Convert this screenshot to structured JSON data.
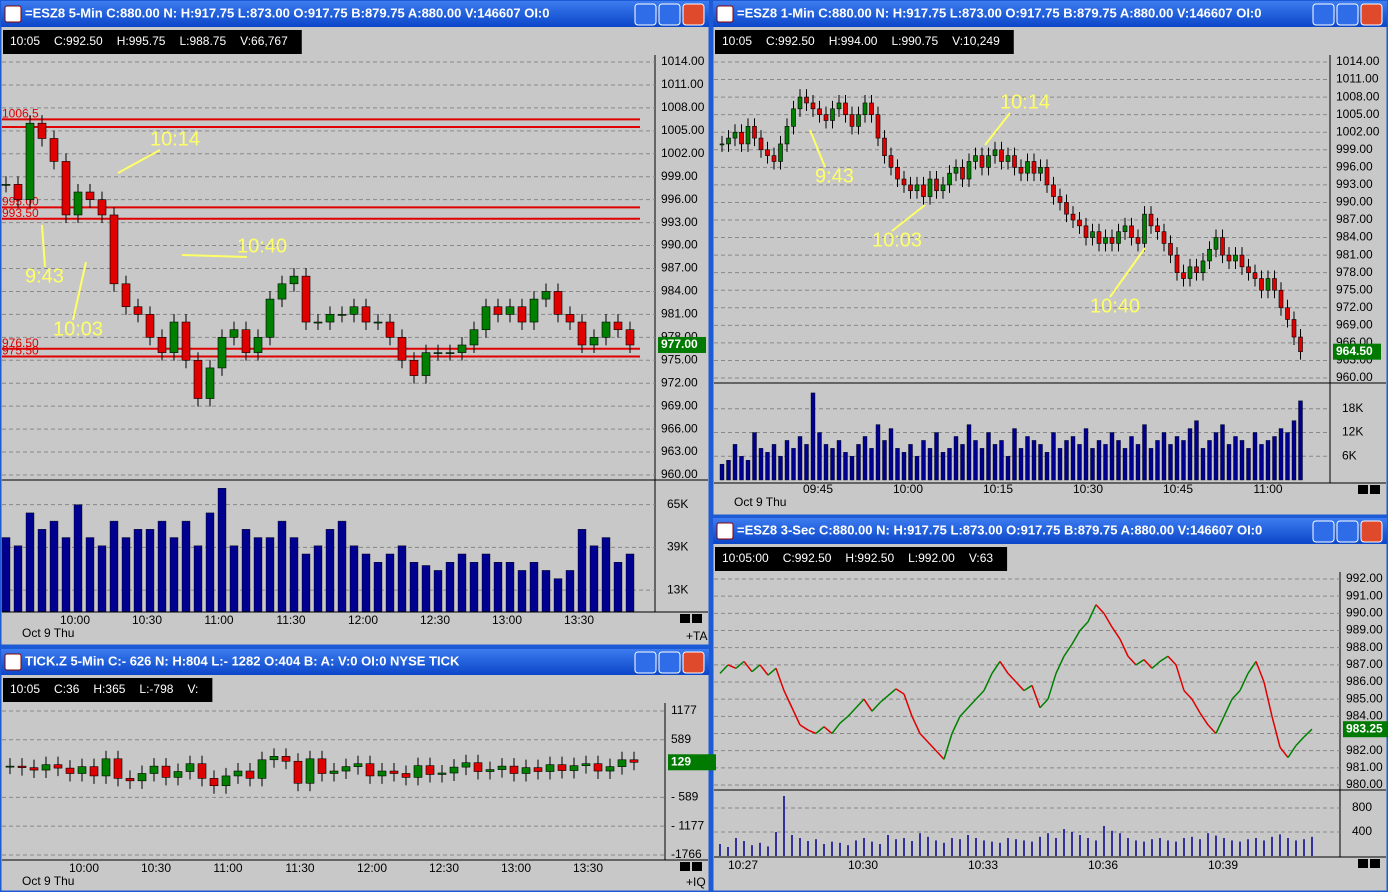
{
  "windows": [
    {
      "title": "=ESZ8 5-Min C:880.00 N: H:917.75 L:873.00 O:917.75 B:879.75 A:880.00 V:146607 OI:0",
      "info": [
        "10:05",
        "C:992.50",
        "H:995.75",
        "L:988.75",
        "V:66,767"
      ],
      "ylim": [
        960,
        1014
      ],
      "yticks": [
        {
          "value": 960,
          "label": "960.00"
        },
        {
          "value": 963,
          "label": "963.00"
        },
        {
          "value": 966,
          "label": "966.00"
        },
        {
          "value": 969,
          "label": "969.00"
        },
        {
          "value": 972,
          "label": "972.00"
        },
        {
          "value": 975,
          "label": "975.00"
        },
        {
          "value": 978,
          "label": "978.00"
        },
        {
          "value": 981,
          "label": "981.00"
        },
        {
          "value": 984,
          "label": "984.00"
        },
        {
          "value": 987,
          "label": "987.00"
        },
        {
          "value": 990,
          "label": "990.00"
        },
        {
          "value": 993,
          "label": "993.00"
        },
        {
          "value": 996,
          "label": "996.00"
        },
        {
          "value": 999,
          "label": "999.00"
        },
        {
          "value": 1002,
          "label": "1002.00"
        },
        {
          "value": 1005,
          "label": "1005.00"
        },
        {
          "value": 1008,
          "label": "1008.00"
        },
        {
          "value": 1011,
          "label": "1011.00"
        },
        {
          "value": 1014,
          "label": "1014.00"
        }
      ],
      "closes": [
        998,
        996,
        1006,
        1004,
        1001,
        994,
        997,
        996,
        994,
        985,
        982,
        981,
        978,
        976,
        980,
        975,
        970,
        974,
        978,
        979,
        976,
        978,
        983,
        985,
        986,
        980,
        980,
        981,
        981,
        982,
        980,
        980,
        978,
        975,
        973,
        976,
        976,
        976,
        977,
        979,
        982,
        981,
        982,
        980,
        983,
        984,
        981,
        980,
        977,
        978,
        980,
        979,
        977
      ],
      "last": {
        "value": 977,
        "label": "977.00"
      },
      "levels": [
        {
          "value": 1006.5,
          "label": "1006.5"
        },
        {
          "value": 1005.5
        },
        {
          "value": 995,
          "label": "995.00"
        },
        {
          "value": 993.5,
          "label": "993.50"
        },
        {
          "value": 976.5,
          "label": "976.50"
        },
        {
          "value": 975.5,
          "label": "975.50"
        }
      ],
      "vol_ylim": [
        0,
        80000
      ],
      "vol_ticks": [
        {
          "value": 13000,
          "label": "13K"
        },
        {
          "value": 39000,
          "label": "39K"
        },
        {
          "value": 65000,
          "label": "65K"
        }
      ],
      "volume": [
        45000,
        40000,
        60000,
        50000,
        55000,
        45000,
        65000,
        45000,
        40000,
        55000,
        45000,
        50000,
        50000,
        55000,
        45000,
        55000,
        40000,
        60000,
        75000,
        40000,
        50000,
        45000,
        45000,
        55000,
        45000,
        35000,
        40000,
        50000,
        55000,
        40000,
        35000,
        30000,
        35000,
        40000,
        30000,
        28000,
        25000,
        30000,
        35000,
        30000,
        35000,
        30000,
        30000,
        25000,
        30000,
        25000,
        20000,
        25000,
        50000,
        40000,
        45000,
        30000,
        35000
      ],
      "times": [
        "10:00",
        "10:30",
        "11:00",
        "11:30",
        "12:00",
        "12:30",
        "13:00",
        "13:30"
      ],
      "date": "Oct 9 Thu",
      "corner": "+TA",
      "annotations": [
        "10:14",
        "10:40",
        "9:43",
        "10:03"
      ]
    },
    {
      "title": "=ESZ8 1-Min C:880.00 N: H:917.75 L:873.00 O:917.75 B:879.75 A:880.00 V:146607 OI:0",
      "info": [
        "10:05",
        "C:992.50",
        "H:994.00",
        "L:990.75",
        "V:10,249"
      ],
      "ylim": [
        960,
        1014
      ],
      "yticks": [
        {
          "value": 960,
          "label": "960.00"
        },
        {
          "value": 963,
          "label": "963.00"
        },
        {
          "value": 966,
          "label": "966.00"
        },
        {
          "value": 969,
          "label": "969.00"
        },
        {
          "value": 972,
          "label": "972.00"
        },
        {
          "value": 975,
          "label": "975.00"
        },
        {
          "value": 978,
          "label": "978.00"
        },
        {
          "value": 981,
          "label": "981.00"
        },
        {
          "value": 984,
          "label": "984.00"
        },
        {
          "value": 987,
          "label": "987.00"
        },
        {
          "value": 990,
          "label": "990.00"
        },
        {
          "value": 993,
          "label": "993.00"
        },
        {
          "value": 996,
          "label": "996.00"
        },
        {
          "value": 999,
          "label": "999.00"
        },
        {
          "value": 1002,
          "label": "1002.00"
        },
        {
          "value": 1005,
          "label": "1005.00"
        },
        {
          "value": 1008,
          "label": "1008.00"
        },
        {
          "value": 1011,
          "label": "1011.00"
        },
        {
          "value": 1014,
          "label": "1014.00"
        }
      ],
      "closes": [
        1000,
        1001,
        1002,
        1000,
        1003,
        1001,
        999,
        998,
        997,
        1000,
        1003,
        1006,
        1008,
        1007,
        1006,
        1005,
        1004,
        1006,
        1007,
        1005,
        1003,
        1005,
        1007,
        1005,
        1001,
        998,
        996,
        994,
        993,
        992,
        993,
        991,
        994,
        992,
        993,
        995,
        996,
        994,
        997,
        998,
        996,
        998,
        999,
        997,
        998,
        996,
        995,
        997,
        995,
        996,
        993,
        991,
        990,
        988,
        987,
        986,
        984,
        985,
        983,
        984,
        983,
        985,
        986,
        984,
        983,
        988,
        986,
        985,
        983,
        981,
        978,
        977,
        979,
        978,
        980,
        982,
        984,
        981,
        980,
        981,
        979,
        978,
        977,
        975,
        977,
        975,
        972,
        970,
        967,
        964.5
      ],
      "last": {
        "value": 964.5,
        "label": "964.50"
      },
      "vol_ylim": [
        0,
        24000
      ],
      "vol_ticks": [
        {
          "value": 6000,
          "label": "6K"
        },
        {
          "value": 12000,
          "label": "12K"
        },
        {
          "value": 18000,
          "label": "18K"
        }
      ],
      "volume": [
        4000,
        5000,
        9000,
        6000,
        5000,
        12000,
        8000,
        7000,
        9000,
        6000,
        10000,
        8000,
        11000,
        9000,
        22000,
        12000,
        9000,
        8000,
        10000,
        7000,
        6000,
        9000,
        11000,
        8000,
        14000,
        10000,
        13000,
        8000,
        7000,
        9000,
        6000,
        10000,
        8000,
        12000,
        7000,
        8000,
        11000,
        9000,
        14000,
        10000,
        8000,
        12000,
        9000,
        10000,
        6000,
        13000,
        8000,
        11000,
        10000,
        9000,
        7000,
        12000,
        8000,
        10000,
        11000,
        9000,
        13000,
        8000,
        10000,
        9000,
        12000,
        10000,
        8000,
        11000,
        9000,
        14000,
        8000,
        10000,
        12000,
        9000,
        11000,
        10000,
        13000,
        15000,
        8000,
        10000,
        12000,
        14000,
        9000,
        11000,
        10000,
        8000,
        12000,
        9000,
        10000,
        11000,
        13000,
        12000,
        15000,
        20000
      ],
      "times": [
        "09:45",
        "10:00",
        "10:15",
        "10:30",
        "10:45",
        "11:00"
      ],
      "date": "Oct 9 Thu",
      "annotations": [
        "10:14",
        "9:43",
        "10:03",
        "10:40"
      ]
    },
    {
      "title": "=ESZ8 3-Sec C:880.00 N: H:917.75 L:873.00 O:917.75 B:879.75 A:880.00 V:146607 OI:0",
      "info": [
        "10:05:00",
        "C:992.50",
        "H:992.50",
        "L:992.00",
        "V:63"
      ],
      "ylim": [
        980,
        992
      ],
      "yticks": [
        {
          "value": 980,
          "label": "980.00"
        },
        {
          "value": 981,
          "label": "981.00"
        },
        {
          "value": 982,
          "label": "982.00"
        },
        {
          "value": 983,
          "label": "983.00"
        },
        {
          "value": 984,
          "label": "984.00"
        },
        {
          "value": 985,
          "label": "985.00"
        },
        {
          "value": 986,
          "label": "986.00"
        },
        {
          "value": 987,
          "label": "987.00"
        },
        {
          "value": 988,
          "label": "988.00"
        },
        {
          "value": 989,
          "label": "989.00"
        },
        {
          "value": 990,
          "label": "990.00"
        },
        {
          "value": 991,
          "label": "991.00"
        },
        {
          "value": 992,
          "label": "992.00"
        }
      ],
      "closes": [
        986.5,
        987,
        986.8,
        987.2,
        986.6,
        987,
        986.4,
        986.8,
        985.5,
        984.5,
        983.5,
        983.2,
        983.0,
        983.4,
        983.0,
        983.6,
        984.0,
        984.5,
        985.0,
        984.3,
        984.8,
        985.2,
        985.6,
        985.3,
        984.0,
        983.0,
        982.5,
        982.0,
        981.5,
        983.0,
        984.0,
        984.5,
        985.0,
        985.5,
        986.5,
        987.2,
        986.5,
        986.0,
        985.5,
        985.8,
        984.5,
        985.0,
        986.5,
        987.5,
        988.2,
        989.0,
        989.5,
        990.5,
        990.0,
        989.2,
        988.5,
        987.5,
        987.0,
        987.3,
        986.8,
        987.2,
        987.5,
        987.0,
        985.5,
        985.0,
        984.2,
        983.5,
        983.0,
        984.0,
        985.0,
        985.5,
        986.5,
        987.2,
        986.0,
        984.0,
        982.2,
        981.6,
        982.3,
        982.8,
        983.25
      ],
      "last": {
        "value": 983.25,
        "label": "983.25"
      },
      "vol_ylim": [
        0,
        1100
      ],
      "vol_ticks": [
        400,
        800
      ],
      "volume": [
        200,
        150,
        300,
        250,
        180,
        220,
        160,
        400,
        1000,
        350,
        300,
        250,
        280,
        200,
        240,
        220,
        180,
        260,
        300,
        240,
        200,
        350,
        280,
        300,
        250,
        380,
        320,
        260,
        220,
        300,
        280,
        350,
        300,
        260,
        240,
        220,
        300,
        280,
        260,
        240,
        320,
        380,
        300,
        450,
        400,
        350,
        300,
        260,
        500,
        420,
        380,
        300,
        260,
        240,
        280,
        300,
        260,
        240,
        300,
        320,
        280,
        380,
        340,
        300,
        260,
        240,
        280,
        300,
        260,
        320,
        360,
        300,
        260,
        280,
        320
      ],
      "times": [
        "10:27",
        "10:30",
        "10:33",
        "10:36",
        "10:39"
      ]
    },
    {
      "title": "TICK.Z 5-Min C:- 626 N: H:804 L:- 1282 O:404 B: A: V:0 OI:0 NYSE TICK",
      "info": [
        "10:05",
        "C:36",
        "H:365",
        "L:-798",
        "V:"
      ],
      "ylim": [
        -1766,
        1177
      ],
      "yticks": [
        {
          "value": -1766,
          "label": "-1766"
        },
        {
          "value": -1177,
          "label": "- 1177"
        },
        {
          "value": -589,
          "label": "- 589"
        },
        589,
        1177
      ],
      "closes": [
        50,
        20,
        -30,
        80,
        10,
        -100,
        40,
        -150,
        200,
        -200,
        -250,
        -100,
        50,
        -180,
        -60,
        100,
        -200,
        -350,
        -150,
        -50,
        -200,
        180,
        250,
        150,
        -300,
        200,
        -100,
        -50,
        40,
        100,
        -150,
        -50,
        -100,
        -180,
        60,
        -120,
        -90,
        30,
        120,
        -60,
        -20,
        50,
        -100,
        20,
        -60,
        80,
        -40,
        60,
        100,
        -50,
        40,
        180,
        129
      ],
      "last": 129,
      "times": [
        "10:00",
        "10:30",
        "11:00",
        "11:30",
        "12:00",
        "12:30",
        "13:00",
        "13:30"
      ],
      "date": "Oct 9 Thu",
      "corner": "+IQ"
    }
  ]
}
